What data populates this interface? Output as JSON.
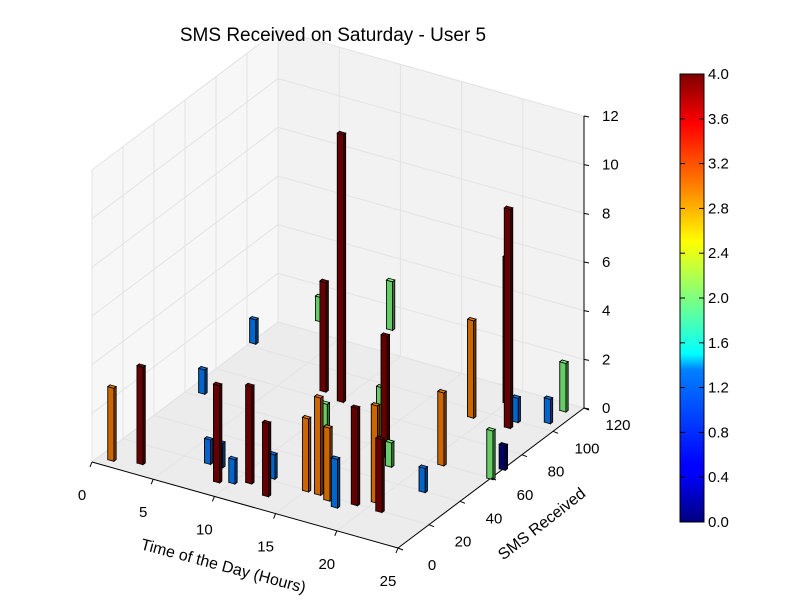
{
  "chart_data": {
    "type": "bar3d",
    "title": "SMS Received on Saturday - User 5",
    "xlabel": "Time of the Day (Hours)",
    "ylabel": "SMS Received",
    "zlabel": "",
    "xlim": [
      0,
      25
    ],
    "ylim": [
      0,
      120
    ],
    "zlim": [
      0,
      12
    ],
    "x_ticks": [
      "0",
      "5",
      "10",
      "15",
      "20",
      "25"
    ],
    "y_ticks": [
      "0",
      "20",
      "40",
      "60",
      "80",
      "100",
      "120"
    ],
    "z_ticks": [
      "0",
      "2",
      "4",
      "6",
      "8",
      "10",
      "12"
    ],
    "colorbar": {
      "min": 0.0,
      "max": 4.0,
      "ticks": [
        "0.0",
        "0.4",
        "0.8",
        "1.2",
        "1.6",
        "2.0",
        "2.4",
        "2.8",
        "3.2",
        "3.6",
        "4.0"
      ]
    },
    "grid": true,
    "bars": [
      {
        "x": 1,
        "y": 5,
        "z0": 0,
        "h": 3.0,
        "c": 3.0
      },
      {
        "x": 3,
        "y": 8,
        "z0": 0,
        "h": 4.0,
        "c": 4.0
      },
      {
        "x": 4,
        "y": 40,
        "z0": 1.5,
        "h": 1.0,
        "c": 1.0
      },
      {
        "x": 5,
        "y": 65,
        "z0": 2.5,
        "h": 1.0,
        "c": 1.0
      },
      {
        "x": 7,
        "y": 20,
        "z0": 0,
        "h": 1.0,
        "c": 1.0
      },
      {
        "x": 8,
        "y": 20,
        "z0": 0,
        "h": 1.0,
        "c": 1.0
      },
      {
        "x": 9,
        "y": 10,
        "z0": 0,
        "h": 4.0,
        "c": 4.0
      },
      {
        "x": 10,
        "y": 12,
        "z0": 0,
        "h": 1.0,
        "c": 1.0
      },
      {
        "x": 10,
        "y": 82,
        "z0": 0,
        "h": 11.0,
        "c": 4.0
      },
      {
        "x": 11,
        "y": 15,
        "z0": 0,
        "h": 4.0,
        "c": 4.0
      },
      {
        "x": 11,
        "y": 60,
        "z0": 4.5,
        "h": 1.0,
        "c": 2.0
      },
      {
        "x": 12,
        "y": 55,
        "z0": 2.0,
        "h": 4.5,
        "c": 4.0
      },
      {
        "x": 12,
        "y": 22,
        "z0": 0,
        "h": 1.0,
        "c": 1.0
      },
      {
        "x": 13,
        "y": 90,
        "z0": 3.0,
        "h": 2.0,
        "c": 2.0
      },
      {
        "x": 13,
        "y": 10,
        "z0": 0,
        "h": 3.0,
        "c": 4.0
      },
      {
        "x": 14,
        "y": 40,
        "z0": 0.5,
        "h": 2.0,
        "c": 2.0
      },
      {
        "x": 15,
        "y": 20,
        "z0": 0,
        "h": 3.0,
        "c": 3.0
      },
      {
        "x": 16,
        "y": 60,
        "z0": 0.5,
        "h": 2.0,
        "c": 2.0
      },
      {
        "x": 16,
        "y": 20,
        "z0": 0,
        "h": 4.0,
        "c": 3.0
      },
      {
        "x": 17,
        "y": 18,
        "z0": 0,
        "h": 3.0,
        "c": 3.0
      },
      {
        "x": 17,
        "y": 55,
        "z0": 0,
        "h": 5.0,
        "c": 4.0
      },
      {
        "x": 18,
        "y": 50,
        "z0": 0,
        "h": 1.0,
        "c": 2.0
      },
      {
        "x": 18,
        "y": 15,
        "z0": 0,
        "h": 2.0,
        "c": 1.0
      },
      {
        "x": 19,
        "y": 95,
        "z0": 0,
        "h": 4.0,
        "c": 3.0
      },
      {
        "x": 19,
        "y": 20,
        "z0": 0,
        "h": 4.0,
        "c": 4.0
      },
      {
        "x": 20,
        "y": 110,
        "z0": 0,
        "h": 6.0,
        "c": 4.0
      },
      {
        "x": 20,
        "y": 25,
        "z0": 0,
        "h": 4.0,
        "c": 3.0
      },
      {
        "x": 21,
        "y": 20,
        "z0": 0,
        "h": 3.0,
        "c": 4.0
      },
      {
        "x": 21,
        "y": 60,
        "z0": 0,
        "h": 3.0,
        "c": 3.0
      },
      {
        "x": 22,
        "y": 40,
        "z0": 0,
        "h": 1.0,
        "c": 1.0
      },
      {
        "x": 22,
        "y": 95,
        "z0": 0,
        "h": 9.0,
        "c": 4.0
      },
      {
        "x": 22,
        "y": 100,
        "z0": 0,
        "h": 1.0,
        "c": 1.0
      },
      {
        "x": 24,
        "y": 115,
        "z0": 0,
        "h": 2.0,
        "c": 2.0
      },
      {
        "x": 24,
        "y": 105,
        "z0": 0,
        "h": 1.0,
        "c": 1.0
      },
      {
        "x": 25,
        "y": 60,
        "z0": 0,
        "h": 2.0,
        "c": 2.0
      },
      {
        "x": 25,
        "y": 68,
        "z0": 0,
        "h": 1.0,
        "c": 0.0
      }
    ]
  }
}
